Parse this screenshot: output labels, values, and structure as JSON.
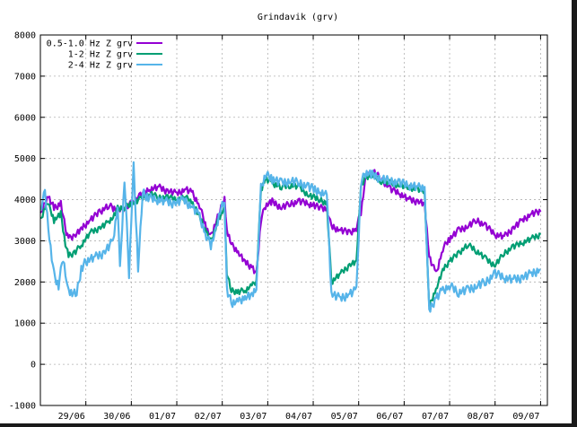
{
  "chart_data": {
    "type": "line",
    "title": "Grindavik (grv)",
    "xlabel": "",
    "ylabel": "",
    "ylim": [
      -1000,
      8000
    ],
    "yticks": [
      -1000,
      0,
      1000,
      2000,
      3000,
      4000,
      5000,
      6000,
      7000,
      8000
    ],
    "xlim": [
      0,
      11.15
    ],
    "xticks": [
      {
        "label": "29/06",
        "x": 1
      },
      {
        "label": "30/06",
        "x": 2
      },
      {
        "label": "01/07",
        "x": 3
      },
      {
        "label": "02/07",
        "x": 4
      },
      {
        "label": "03/07",
        "x": 5
      },
      {
        "label": "04/07",
        "x": 6
      },
      {
        "label": "05/07",
        "x": 7
      },
      {
        "label": "06/07",
        "x": 8
      },
      {
        "label": "07/07",
        "x": 9
      },
      {
        "label": "08/07",
        "x": 10
      },
      {
        "label": "09/07",
        "x": 11
      }
    ],
    "grid": true,
    "legend_position": "top-left",
    "series": [
      {
        "name": "0.5-1.0 Hz Z grv",
        "color": "#9400d3",
        "points": [
          [
            0.0,
            3600
          ],
          [
            0.15,
            4100
          ],
          [
            0.3,
            3800
          ],
          [
            0.45,
            3900
          ],
          [
            0.55,
            3300
          ],
          [
            0.62,
            3050
          ],
          [
            0.75,
            3100
          ],
          [
            0.9,
            3300
          ],
          [
            1.1,
            3500
          ],
          [
            1.3,
            3700
          ],
          [
            1.5,
            3850
          ],
          [
            1.6,
            3800
          ],
          [
            1.7,
            3750
          ],
          [
            1.85,
            3800
          ],
          [
            2.0,
            3900
          ],
          [
            2.2,
            4100
          ],
          [
            2.4,
            4250
          ],
          [
            2.6,
            4300
          ],
          [
            2.8,
            4200
          ],
          [
            3.0,
            4150
          ],
          [
            3.2,
            4250
          ],
          [
            3.35,
            4150
          ],
          [
            3.5,
            3850
          ],
          [
            3.65,
            3300
          ],
          [
            3.75,
            3100
          ],
          [
            3.85,
            3400
          ],
          [
            3.95,
            3750
          ],
          [
            4.05,
            4000
          ],
          [
            4.1,
            3300
          ],
          [
            4.2,
            2900
          ],
          [
            4.35,
            2700
          ],
          [
            4.5,
            2500
          ],
          [
            4.65,
            2350
          ],
          [
            4.75,
            2200
          ],
          [
            4.85,
            3500
          ],
          [
            4.95,
            3850
          ],
          [
            5.1,
            3950
          ],
          [
            5.3,
            3800
          ],
          [
            5.5,
            3900
          ],
          [
            5.7,
            3950
          ],
          [
            5.9,
            3900
          ],
          [
            6.15,
            3800
          ],
          [
            6.3,
            3750
          ],
          [
            6.4,
            3350
          ],
          [
            6.6,
            3250
          ],
          [
            6.8,
            3200
          ],
          [
            6.95,
            3300
          ],
          [
            7.05,
            3700
          ],
          [
            7.15,
            4500
          ],
          [
            7.3,
            4700
          ],
          [
            7.5,
            4500
          ],
          [
            7.7,
            4250
          ],
          [
            7.9,
            4150
          ],
          [
            8.1,
            4000
          ],
          [
            8.3,
            3950
          ],
          [
            8.45,
            3900
          ],
          [
            8.55,
            2600
          ],
          [
            8.7,
            2200
          ],
          [
            8.85,
            2800
          ],
          [
            9.0,
            3050
          ],
          [
            9.2,
            3250
          ],
          [
            9.4,
            3350
          ],
          [
            9.6,
            3500
          ],
          [
            9.8,
            3350
          ],
          [
            10.0,
            3150
          ],
          [
            10.2,
            3100
          ],
          [
            10.4,
            3300
          ],
          [
            10.6,
            3500
          ],
          [
            10.8,
            3650
          ],
          [
            11.0,
            3700
          ]
        ]
      },
      {
        "name": "1-2 Hz Z grv",
        "color": "#009e73",
        "points": [
          [
            0.0,
            3500
          ],
          [
            0.15,
            3950
          ],
          [
            0.3,
            3500
          ],
          [
            0.45,
            3650
          ],
          [
            0.55,
            2900
          ],
          [
            0.62,
            2650
          ],
          [
            0.75,
            2700
          ],
          [
            0.9,
            2900
          ],
          [
            1.1,
            3200
          ],
          [
            1.3,
            3300
          ],
          [
            1.5,
            3450
          ],
          [
            1.6,
            3550
          ],
          [
            1.7,
            3800
          ],
          [
            1.85,
            3800
          ],
          [
            2.0,
            3900
          ],
          [
            2.2,
            4000
          ],
          [
            2.4,
            4150
          ],
          [
            2.6,
            4050
          ],
          [
            2.8,
            4050
          ],
          [
            3.0,
            4000
          ],
          [
            3.2,
            4050
          ],
          [
            3.35,
            3900
          ],
          [
            3.5,
            3600
          ],
          [
            3.65,
            3200
          ],
          [
            3.75,
            3000
          ],
          [
            3.85,
            3300
          ],
          [
            3.95,
            3600
          ],
          [
            4.05,
            3800
          ],
          [
            4.1,
            2200
          ],
          [
            4.2,
            1800
          ],
          [
            4.35,
            1750
          ],
          [
            4.5,
            1800
          ],
          [
            4.65,
            1900
          ],
          [
            4.75,
            2000
          ],
          [
            4.85,
            4200
          ],
          [
            4.95,
            4500
          ],
          [
            5.1,
            4400
          ],
          [
            5.3,
            4300
          ],
          [
            5.5,
            4350
          ],
          [
            5.7,
            4300
          ],
          [
            5.9,
            4100
          ],
          [
            6.15,
            4000
          ],
          [
            6.3,
            3900
          ],
          [
            6.4,
            2000
          ],
          [
            6.6,
            2200
          ],
          [
            6.8,
            2400
          ],
          [
            6.95,
            2500
          ],
          [
            7.05,
            4300
          ],
          [
            7.15,
            4550
          ],
          [
            7.3,
            4600
          ],
          [
            7.5,
            4450
          ],
          [
            7.7,
            4400
          ],
          [
            7.9,
            4350
          ],
          [
            8.1,
            4300
          ],
          [
            8.3,
            4250
          ],
          [
            8.45,
            4200
          ],
          [
            8.55,
            1400
          ],
          [
            8.7,
            1800
          ],
          [
            8.85,
            2300
          ],
          [
            9.0,
            2500
          ],
          [
            9.2,
            2700
          ],
          [
            9.4,
            2900
          ],
          [
            9.6,
            2750
          ],
          [
            9.8,
            2550
          ],
          [
            10.0,
            2400
          ],
          [
            10.2,
            2700
          ],
          [
            10.4,
            2850
          ],
          [
            10.6,
            2950
          ],
          [
            10.8,
            3050
          ],
          [
            11.0,
            3150
          ]
        ]
      },
      {
        "name": "2-4 Hz Z grv",
        "color": "#56b4e9",
        "points": [
          [
            0.0,
            3700
          ],
          [
            0.1,
            4200
          ],
          [
            0.2,
            3000
          ],
          [
            0.3,
            2200
          ],
          [
            0.4,
            1900
          ],
          [
            0.5,
            2600
          ],
          [
            0.6,
            1800
          ],
          [
            0.7,
            1700
          ],
          [
            0.8,
            1750
          ],
          [
            0.9,
            2300
          ],
          [
            1.0,
            2500
          ],
          [
            1.2,
            2600
          ],
          [
            1.4,
            2700
          ],
          [
            1.6,
            3000
          ],
          [
            1.7,
            3800
          ],
          [
            1.75,
            2300
          ],
          [
            1.85,
            4500
          ],
          [
            1.95,
            2200
          ],
          [
            2.05,
            4800
          ],
          [
            2.15,
            2300
          ],
          [
            2.25,
            4200
          ],
          [
            2.35,
            4050
          ],
          [
            2.55,
            4000
          ],
          [
            2.75,
            3950
          ],
          [
            2.95,
            3900
          ],
          [
            3.15,
            4000
          ],
          [
            3.35,
            3800
          ],
          [
            3.5,
            3600
          ],
          [
            3.65,
            3100
          ],
          [
            3.75,
            2900
          ],
          [
            3.85,
            3200
          ],
          [
            3.95,
            3700
          ],
          [
            4.05,
            4000
          ],
          [
            4.1,
            1800
          ],
          [
            4.2,
            1500
          ],
          [
            4.35,
            1500
          ],
          [
            4.5,
            1600
          ],
          [
            4.65,
            1700
          ],
          [
            4.75,
            1800
          ],
          [
            4.85,
            4300
          ],
          [
            4.95,
            4600
          ],
          [
            5.1,
            4500
          ],
          [
            5.3,
            4400
          ],
          [
            5.5,
            4450
          ],
          [
            5.7,
            4400
          ],
          [
            5.9,
            4300
          ],
          [
            6.15,
            4200
          ],
          [
            6.3,
            4100
          ],
          [
            6.4,
            1700
          ],
          [
            6.6,
            1600
          ],
          [
            6.8,
            1700
          ],
          [
            6.95,
            1800
          ],
          [
            7.05,
            4400
          ],
          [
            7.15,
            4650
          ],
          [
            7.3,
            4600
          ],
          [
            7.5,
            4500
          ],
          [
            7.7,
            4450
          ],
          [
            7.9,
            4400
          ],
          [
            8.1,
            4350
          ],
          [
            8.3,
            4300
          ],
          [
            8.45,
            4250
          ],
          [
            8.55,
            1300
          ],
          [
            8.7,
            1600
          ],
          [
            8.85,
            1800
          ],
          [
            9.0,
            1900
          ],
          [
            9.2,
            1750
          ],
          [
            9.4,
            1800
          ],
          [
            9.6,
            1900
          ],
          [
            9.8,
            2000
          ],
          [
            10.0,
            2200
          ],
          [
            10.2,
            2100
          ],
          [
            10.4,
            2050
          ],
          [
            10.6,
            2100
          ],
          [
            10.8,
            2200
          ],
          [
            11.0,
            2300
          ]
        ]
      }
    ]
  }
}
